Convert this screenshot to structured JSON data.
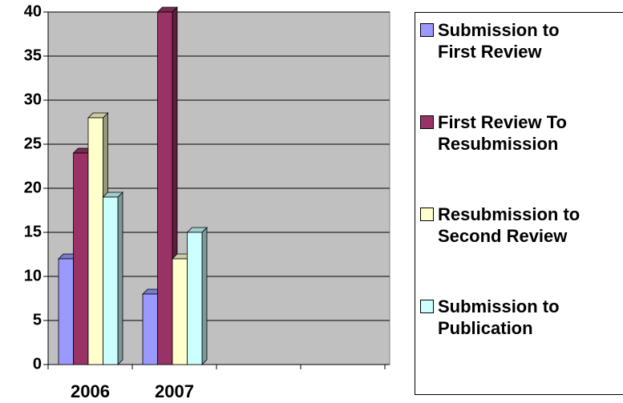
{
  "chart_data": {
    "type": "bar3d",
    "categories": [
      "2006",
      "2007",
      null,
      null
    ],
    "series": [
      {
        "name": "Submission to First Review",
        "color": "#9999ff",
        "values": [
          12,
          8,
          null,
          null
        ]
      },
      {
        "name": "First Review To Resubmission",
        "color": "#993366",
        "values": [
          24,
          40,
          null,
          null
        ]
      },
      {
        "name": "Resubmission to Second Review",
        "color": "#ffffcc",
        "values": [
          28,
          12,
          null,
          null
        ]
      },
      {
        "name": "Submission to Publication",
        "color": "#ccffff",
        "values": [
          19,
          15,
          null,
          null
        ]
      }
    ],
    "ylim": [
      0,
      40
    ],
    "yticks": [
      0,
      5,
      10,
      15,
      20,
      25,
      30,
      35,
      40
    ],
    "grid": true,
    "legend": "right"
  }
}
